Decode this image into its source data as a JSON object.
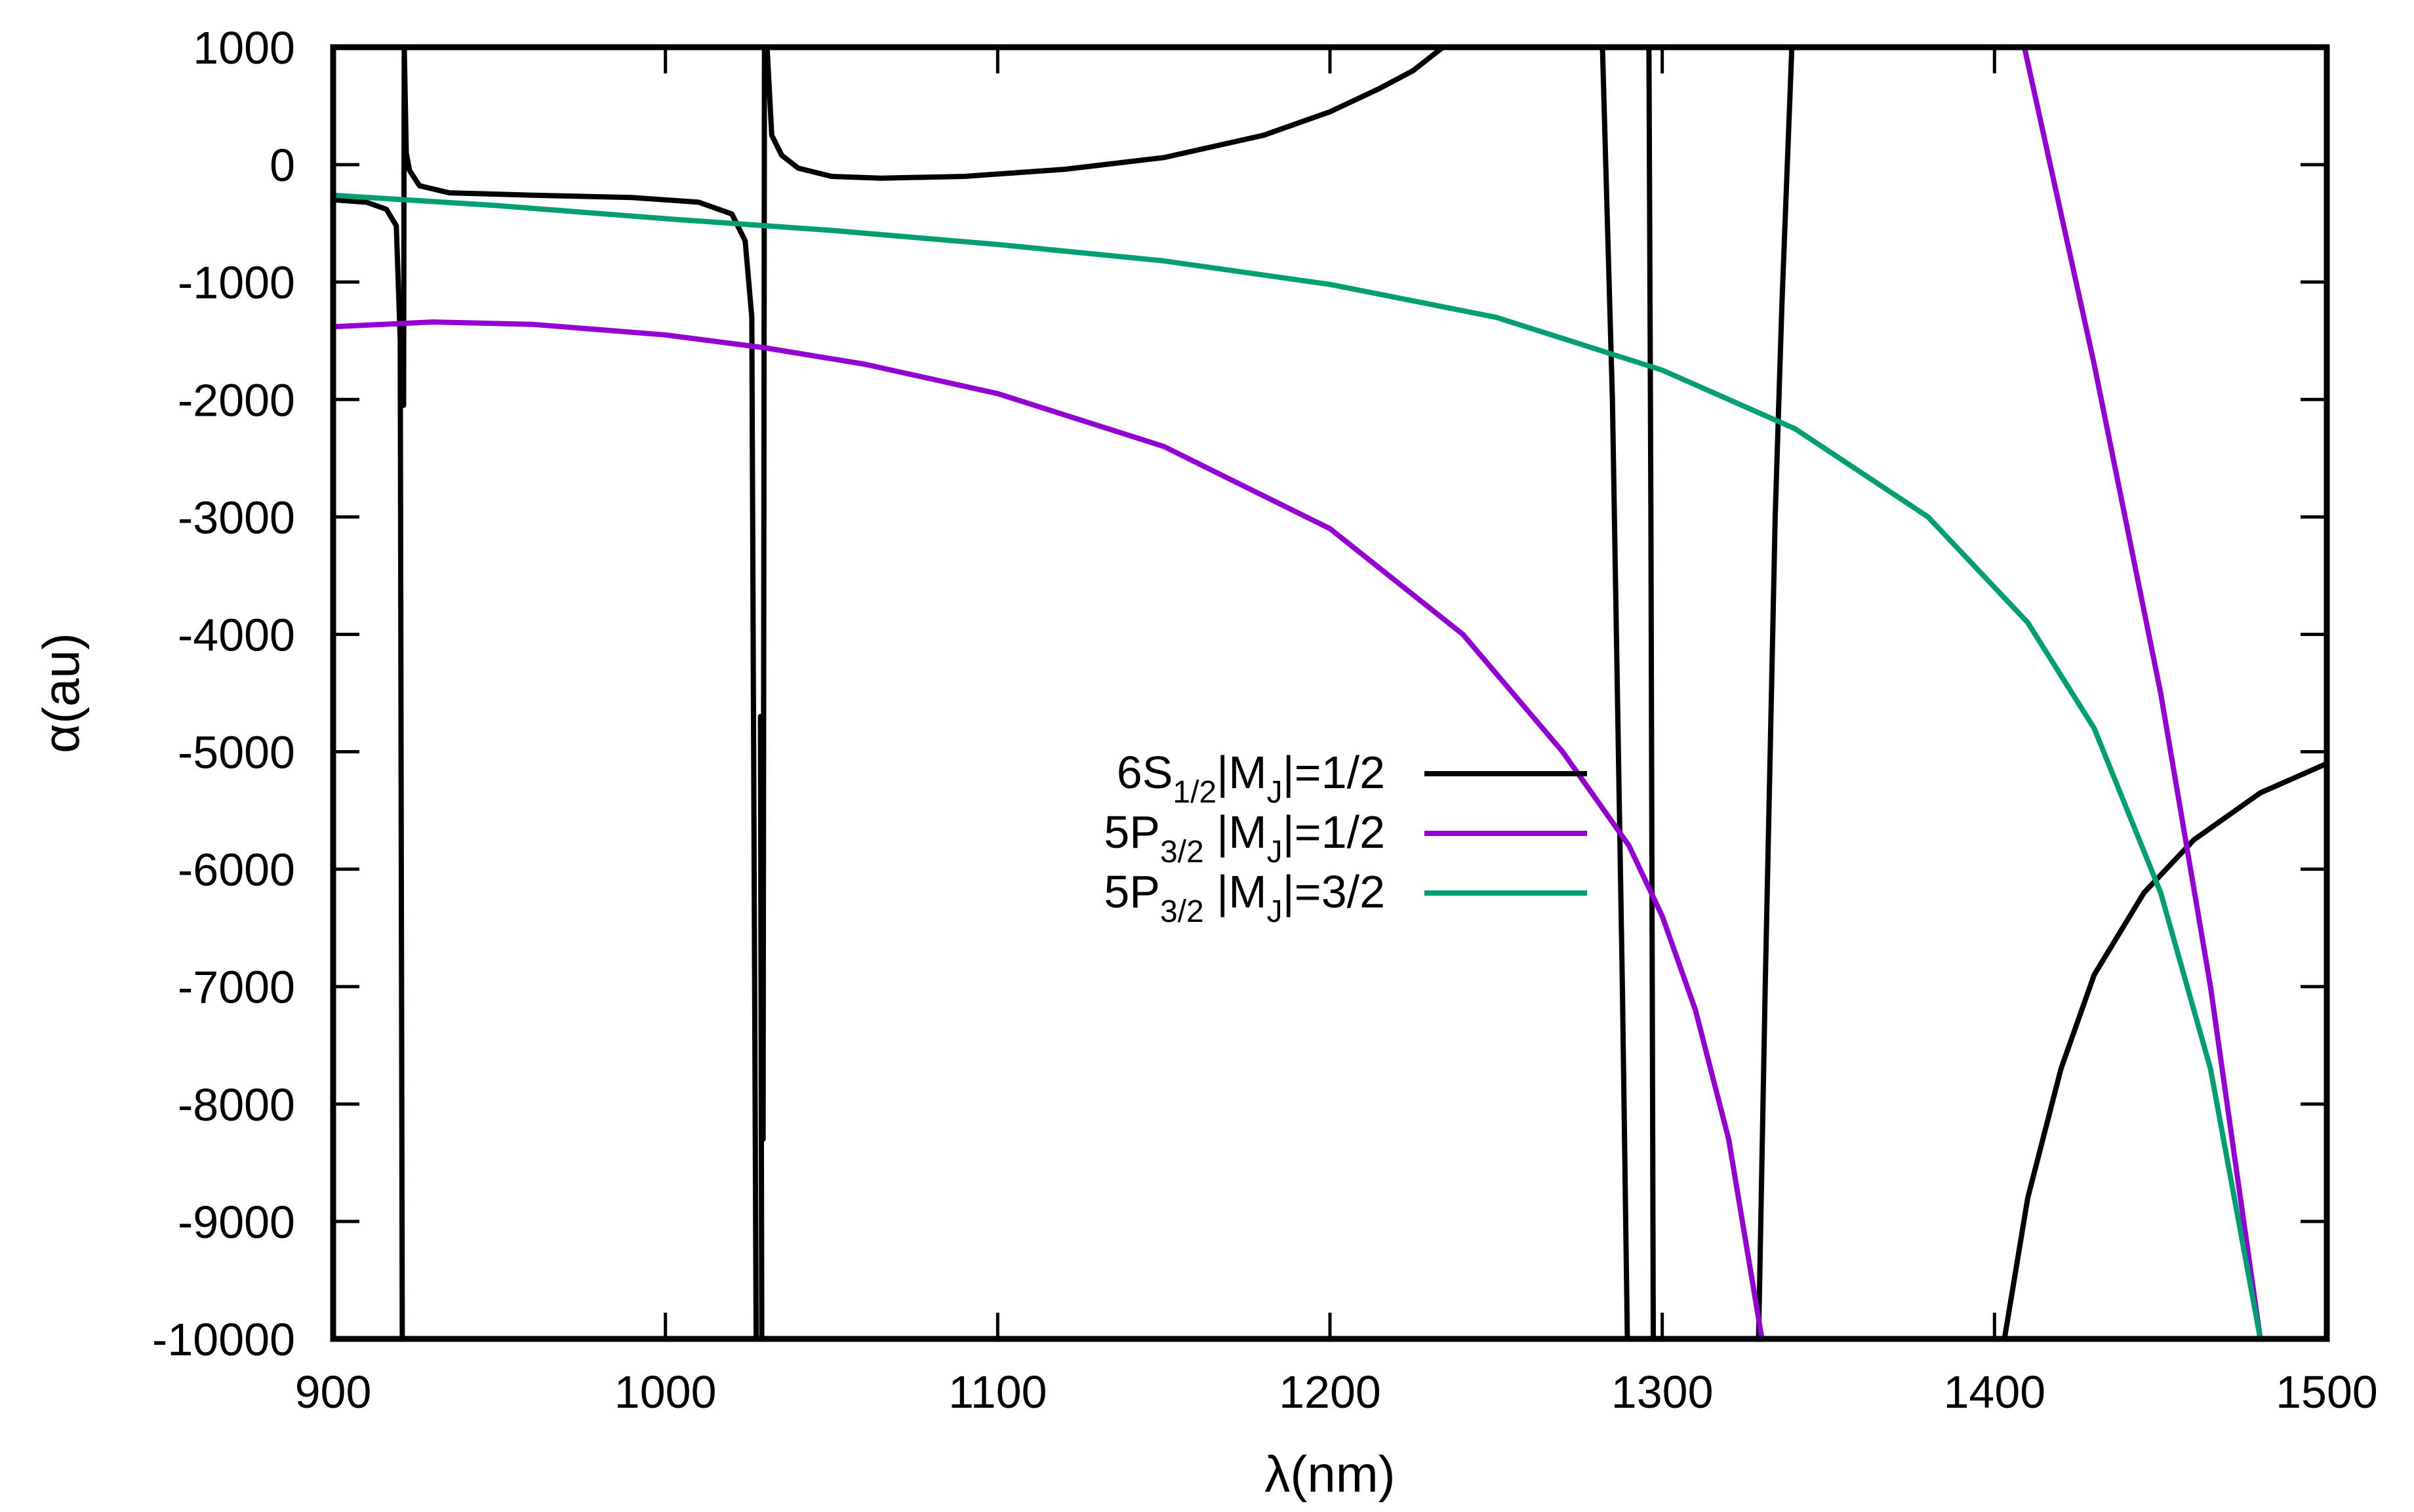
{
  "chart_data": {
    "type": "line",
    "xlabel": "λ(nm)",
    "ylabel": "α(au)",
    "xlim": [
      900,
      1500
    ],
    "ylim": [
      -10000,
      1000
    ],
    "x_ticks": [
      900,
      1000,
      1100,
      1200,
      1300,
      1400,
      1500
    ],
    "y_ticks": [
      1000,
      0,
      -1000,
      -2000,
      -3000,
      -4000,
      -5000,
      -6000,
      -7000,
      -8000,
      -9000,
      -10000
    ],
    "x_tick_labels": [
      "900",
      "1000",
      "1100",
      "1200",
      "1300",
      "1400",
      "1500"
    ],
    "y_tick_labels": [
      "1000",
      "0",
      "-1000",
      "-2000",
      "-3000",
      "-4000",
      "-5000",
      "-6000",
      "-7000",
      "-8000",
      "-9000",
      "-10000"
    ],
    "legend_placement": "center-right",
    "series": [
      {
        "name": "6S1/2|MJ|=1/2",
        "label_parts": {
          "main": "6S",
          "sub": "1/2",
          "rest1": "|M",
          "sub2": "J",
          "rest2": "|=1/2"
        },
        "color": "#000000",
        "segments": [
          {
            "x": [
              900,
              910,
              916,
              919,
              920.2,
              920.8
            ],
            "y": [
              -300,
              -320,
              -380,
              -520,
              -1500,
              -10000
            ]
          },
          {
            "x": [
              921.2,
              921.4,
              922,
              923,
              926,
              935,
              960,
              990,
              1010,
              1020,
              1024,
              1026,
              1027.3
            ],
            "y": [
              -2050,
              1000,
              100,
              -50,
              -180,
              -240,
              -260,
              -280,
              -320,
              -420,
              -650,
              -1300,
              -10000
            ]
          },
          {
            "x": [
              1028.6,
              1029.0
            ],
            "y": [
              -4700,
              -10000
            ]
          },
          {
            "x": [
              1029.4,
              1029.8
            ],
            "y": [
              -8300,
              1000
            ]
          },
          {
            "x": [
              1030.6,
              1032,
              1035,
              1040,
              1050,
              1065,
              1090,
              1120,
              1150,
              1180,
              1200,
              1215,
              1225,
              1234
            ],
            "y": [
              1000,
              250,
              80,
              -30,
              -100,
              -115,
              -100,
              -40,
              60,
              250,
              450,
              650,
              800,
              1000
            ]
          },
          {
            "x": [
              1282,
              1285,
              1288,
              1289.5
            ],
            "y": [
              1000,
              -2000,
              -7000,
              -10000
            ]
          },
          {
            "x": [
              1296,
              1296.6,
              1297.3
            ],
            "y": [
              1000,
              -3000,
              -10000
            ]
          },
          {
            "x": [
              1329,
              1331,
              1334,
              1336,
              1339
            ],
            "y": [
              -10000,
              -7000,
              -3000,
              -1200,
              1000
            ]
          },
          {
            "x": [
              1403,
              1410,
              1420,
              1430,
              1445,
              1460,
              1480,
              1500
            ],
            "y": [
              -10000,
              -8800,
              -7700,
              -6900,
              -6200,
              -5750,
              -5350,
              -5100
            ]
          }
        ]
      },
      {
        "name": "5P3/2 |MJ|=1/2",
        "label_parts": {
          "main": "5P",
          "sub": "3/2",
          "rest1": " |M",
          "sub2": "J",
          "rest2": "|=1/2"
        },
        "color": "#9400d3",
        "segments": [
          {
            "x": [
              900,
              930,
              960,
              1000,
              1030,
              1060,
              1100,
              1150,
              1200,
              1240,
              1270,
              1290,
              1300,
              1310,
              1320,
              1330
            ],
            "y": [
              -1380,
              -1340,
              -1360,
              -1450,
              -1560,
              -1700,
              -1950,
              -2400,
              -3100,
              -4000,
              -5000,
              -5800,
              -6400,
              -7200,
              -8300,
              -10000
            ]
          },
          {
            "x": [
              1409,
              1430,
              1450,
              1465,
              1480
            ],
            "y": [
              1000,
              -1700,
              -4500,
              -7000,
              -10000
            ]
          }
        ]
      },
      {
        "name": "5P3/2 |MJ|=3/2",
        "label_parts": {
          "main": "5P",
          "sub": "3/2",
          "rest1": " |M",
          "sub2": "J",
          "rest2": "|=3/2"
        },
        "color": "#009e73",
        "segments": [
          {
            "x": [
              900,
              950,
              1000,
              1050,
              1100,
              1150,
              1200,
              1250,
              1300,
              1340,
              1380,
              1410,
              1430,
              1450,
              1465,
              1480
            ],
            "y": [
              -260,
              -350,
              -460,
              -560,
              -680,
              -820,
              -1020,
              -1300,
              -1750,
              -2250,
              -3000,
              -3900,
              -4800,
              -6200,
              -7700,
              -10000
            ]
          }
        ]
      }
    ]
  }
}
